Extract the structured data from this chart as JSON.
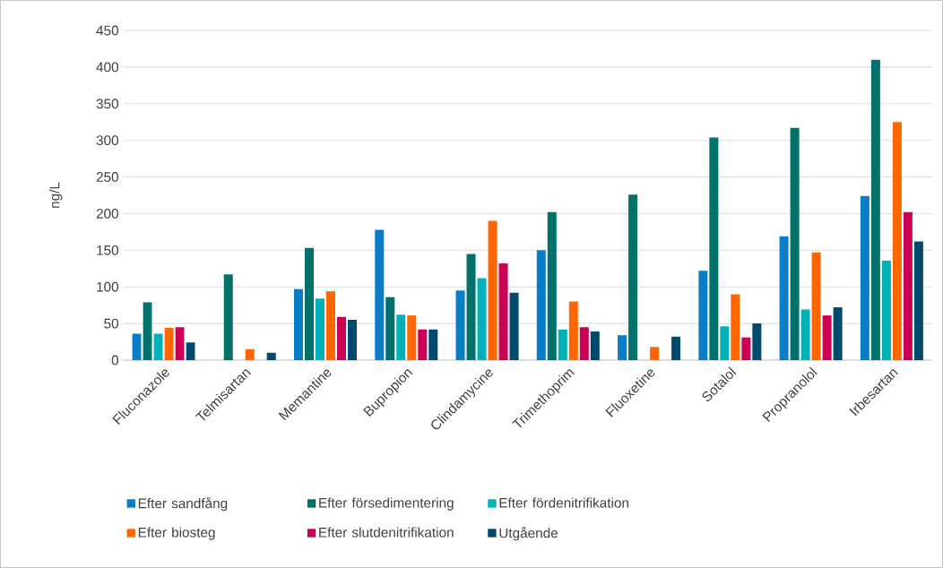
{
  "chart_data": {
    "type": "bar",
    "ylabel": "ng/L",
    "categories": [
      "Fluconazole",
      "Telmisartan",
      "Memantine",
      "Bupropion",
      "Clindamycine",
      "Trimethoprim",
      "Fluoxetine",
      "Sotalol",
      "Propranolol",
      "Irbesartan"
    ],
    "series": [
      {
        "name": "Efter sandfång",
        "color": "#0a7dc8",
        "values": [
          36,
          null,
          97,
          178,
          95,
          150,
          34,
          122,
          169,
          224
        ]
      },
      {
        "name": "Efter försedimentering",
        "color": "#00716b",
        "values": [
          79,
          117,
          153,
          86,
          145,
          202,
          226,
          304,
          317,
          410
        ]
      },
      {
        "name": "Efter fördenitrifikation",
        "color": "#00b2b8",
        "values": [
          36,
          null,
          84,
          62,
          112,
          42,
          null,
          46,
          69,
          136
        ]
      },
      {
        "name": "Efter biosteg",
        "color": "#ff6600",
        "values": [
          44,
          15,
          94,
          61,
          190,
          80,
          18,
          90,
          147,
          325
        ]
      },
      {
        "name": "Efter slutdenitrifikation",
        "color": "#cc0055",
        "values": [
          45,
          null,
          59,
          42,
          132,
          45,
          null,
          31,
          61,
          202
        ]
      },
      {
        "name": "Utgående",
        "color": "#004a6e",
        "values": [
          24,
          10,
          55,
          42,
          92,
          39,
          32,
          50,
          72,
          162
        ]
      }
    ],
    "ylim": [
      0,
      450
    ],
    "yticks": [
      0,
      50,
      100,
      150,
      200,
      250,
      300,
      350,
      400,
      450
    ],
    "grid": "y",
    "legend": "bottom"
  }
}
